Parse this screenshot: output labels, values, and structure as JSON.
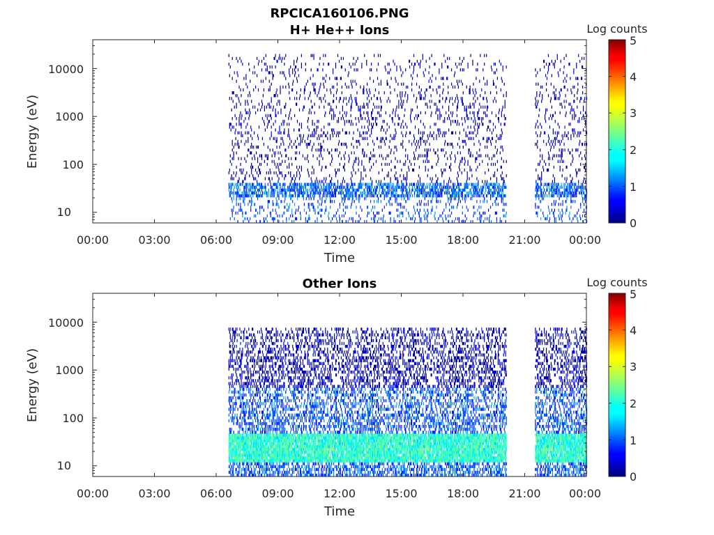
{
  "figure": {
    "title": "RPCICA160106.PNG"
  },
  "chart_data": [
    {
      "type": "heatmap",
      "title": "H+ He++ Ions",
      "xlabel": "Time",
      "ylabel": "Energy (eV)",
      "x_ticks": [
        "00:00",
        "03:00",
        "06:00",
        "09:00",
        "12:00",
        "15:00",
        "18:00",
        "21:00",
        "00:00"
      ],
      "y_ticks": [
        "10",
        "100",
        "1000",
        "10000"
      ],
      "y_scale": "log",
      "xlim_hours": [
        0,
        24
      ],
      "ylim_eV": [
        6,
        40000
      ],
      "colorbar": {
        "label": "Log counts",
        "ticks": [
          "0",
          "1",
          "2",
          "3",
          "4",
          "5"
        ],
        "range": [
          0,
          5
        ],
        "colormap": "jet"
      },
      "data_coverage_hours": [
        [
          6.6,
          20.1
        ],
        [
          21.5,
          24.0
        ]
      ],
      "typical_log_counts": {
        "below_40eV": 1.0,
        "above_40eV": 0.2
      },
      "peak_energy_eV": 20000,
      "density": 0.14,
      "band": {
        "low_eV": 20,
        "high_eV": 40,
        "level": 1.1,
        "density": 0.55
      }
    },
    {
      "type": "heatmap",
      "title": "Other Ions",
      "xlabel": "Time",
      "ylabel": "Energy (eV)",
      "x_ticks": [
        "00:00",
        "03:00",
        "06:00",
        "09:00",
        "12:00",
        "15:00",
        "18:00",
        "21:00",
        "00:00"
      ],
      "y_ticks": [
        "10",
        "100",
        "1000",
        "10000"
      ],
      "y_scale": "log",
      "xlim_hours": [
        0,
        24
      ],
      "ylim_eV": [
        6,
        40000
      ],
      "colorbar": {
        "label": "Log counts",
        "ticks": [
          "0",
          "1",
          "2",
          "3",
          "4",
          "5"
        ],
        "range": [
          0,
          5
        ],
        "colormap": "jet"
      },
      "data_coverage_hours": [
        [
          6.6,
          20.1
        ],
        [
          21.5,
          24.0
        ]
      ],
      "typical_log_counts": {
        "below_40eV": 2.2,
        "40_to_400eV": 1.0,
        "above_400eV": 0.3
      },
      "peak_energy_eV": 8000,
      "density": 0.45,
      "band": {
        "low_eV": 12,
        "high_eV": 45,
        "level": 2.1,
        "density": 0.9
      }
    }
  ]
}
